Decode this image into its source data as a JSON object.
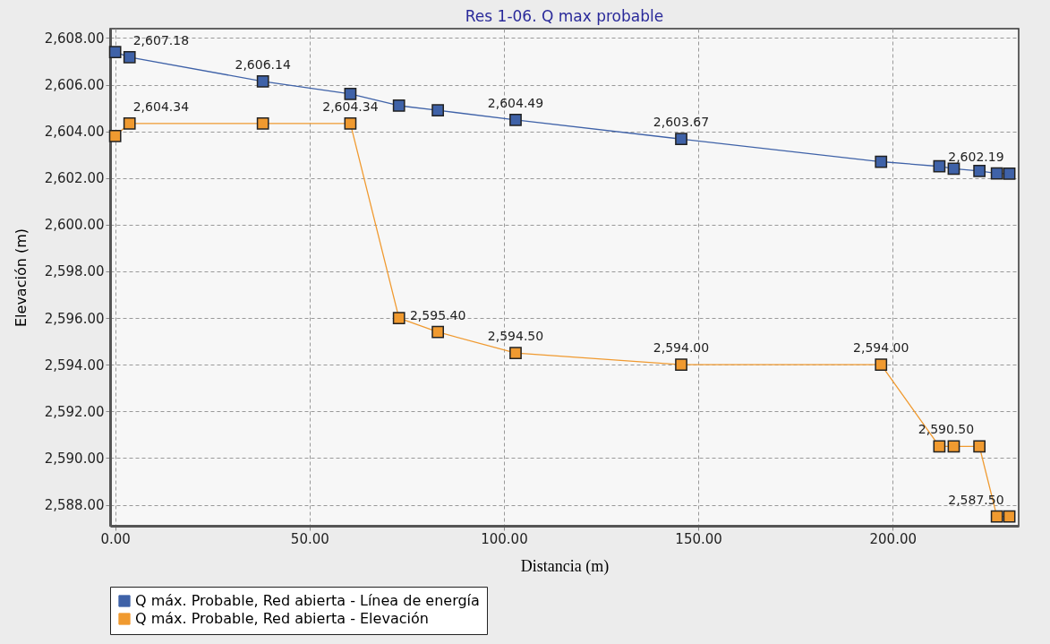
{
  "chart_data": {
    "type": "line",
    "title": "Res 1-06. Q max probable",
    "xlabel": "Distancia (m)",
    "ylabel": "Elevación (m)",
    "x": [
      0,
      3.7,
      38,
      60.5,
      73,
      83,
      103,
      145.6,
      197,
      212,
      215.7,
      222.3,
      226.8,
      230
    ],
    "series": [
      {
        "name": "Q máx. Probable, Red abierta - Línea de energía",
        "color": "#3f62a8",
        "values": [
          2607.4,
          2607.18,
          2606.14,
          2605.6,
          2605.1,
          2604.9,
          2604.49,
          2603.67,
          2602.7,
          2602.5,
          2602.4,
          2602.3,
          2602.2,
          2602.19
        ],
        "value_labels": [
          null,
          "2,607.18",
          "2,606.14",
          null,
          null,
          null,
          "2,604.49",
          "2,603.67",
          null,
          null,
          null,
          null,
          null,
          "2,602.19"
        ]
      },
      {
        "name": "Q máx. Probable, Red abierta - Elevación",
        "color": "#f09a30",
        "values": [
          2603.8,
          2604.34,
          2604.34,
          2604.34,
          2596.0,
          2595.4,
          2594.5,
          2594.0,
          2594.0,
          2590.5,
          2590.5,
          2590.5,
          2587.5,
          2587.5
        ],
        "value_labels": [
          null,
          "2,604.34",
          null,
          "2,604.34",
          null,
          "2,595.40",
          "2,594.50",
          "2,594.00",
          "2,594.00",
          null,
          null,
          "2,590.50",
          null,
          "2,587.50"
        ]
      }
    ],
    "xlim": [
      -1.3,
      232.4
    ],
    "ylim": [
      2587.1,
      2608.4
    ],
    "xticks": [
      {
        "value": 0,
        "label": "0.00"
      },
      {
        "value": 50,
        "label": "50.00"
      },
      {
        "value": 100,
        "label": "100.00"
      },
      {
        "value": 150,
        "label": "150.00"
      },
      {
        "value": 200,
        "label": "200.00"
      }
    ],
    "yticks": [
      {
        "value": 2588,
        "label": "2,588.00"
      },
      {
        "value": 2590,
        "label": "2,590.00"
      },
      {
        "value": 2592,
        "label": "2,592.00"
      },
      {
        "value": 2594,
        "label": "2,594.00"
      },
      {
        "value": 2596,
        "label": "2,596.00"
      },
      {
        "value": 2598,
        "label": "2,598.00"
      },
      {
        "value": 2600,
        "label": "2,600.00"
      },
      {
        "value": 2602,
        "label": "2,602.00"
      },
      {
        "value": 2604,
        "label": "2,604.00"
      },
      {
        "value": 2606,
        "label": "2,606.00"
      },
      {
        "value": 2608,
        "label": "2,608.00"
      }
    ],
    "grid": true,
    "legend": "bottom",
    "marker": "square",
    "line_style": "solid"
  }
}
